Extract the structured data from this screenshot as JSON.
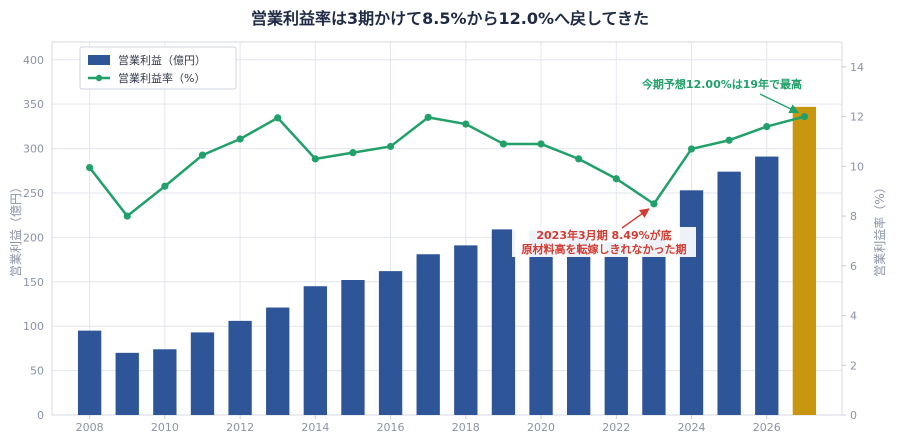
{
  "colors": {
    "bar": "#2e5597",
    "bar_highlight": "#c9960f",
    "line": "#21a06a",
    "annotation_green": "#21a06a",
    "annotation_red": "#d03b32",
    "grid": "#e3e6ee",
    "axis_text": "#8a93a8",
    "title": "#1f2a44"
  },
  "chart_data": {
    "type": "bar+line",
    "title": "営業利益率は3期かけて8.5%から12.0%へ戻してきた",
    "xlabel": "",
    "ylabel_left": "営業利益（億円）",
    "ylabel_right": "営業利益率（%）",
    "ylim_left": [
      0,
      420
    ],
    "ylim_right": [
      0,
      15
    ],
    "xlim": [
      2007,
      2028
    ],
    "grid": true,
    "legend_position": "top-left",
    "x": [
      2008,
      2009,
      2010,
      2011,
      2012,
      2013,
      2014,
      2015,
      2016,
      2017,
      2018,
      2019,
      2020,
      2021,
      2022,
      2023,
      2024,
      2025,
      2026,
      2027
    ],
    "x_tick_labels": [
      "2008",
      "2010",
      "2012",
      "2014",
      "2016",
      "2018",
      "2020",
      "2022",
      "2024",
      "2026"
    ],
    "y_left_tick_labels": [
      "0",
      "50",
      "100",
      "150",
      "200",
      "250",
      "300",
      "350",
      "400"
    ],
    "y_right_tick_labels": [
      "0",
      "2",
      "4",
      "6",
      "8",
      "10",
      "12",
      "14"
    ],
    "series": [
      {
        "name": "営業利益（億円）",
        "type": "bar",
        "axis": "left",
        "values": [
          95,
          70,
          74,
          93,
          106,
          121,
          145,
          152,
          162,
          181,
          191,
          209,
          208,
          201,
          194,
          198,
          253,
          274,
          291,
          347
        ],
        "highlight_index": 19
      },
      {
        "name": "営業利益率（%）",
        "type": "line",
        "axis": "right",
        "values": [
          9.95,
          8.0,
          9.2,
          10.45,
          11.1,
          11.95,
          10.3,
          10.55,
          10.8,
          11.97,
          11.7,
          10.9,
          10.9,
          10.3,
          9.5,
          8.49,
          10.7,
          11.05,
          11.6,
          12.0
        ]
      }
    ],
    "annotations": [
      {
        "text_lines": [
          "今期予想12.00%は19年で最高"
        ],
        "target_x": 2027,
        "target_y_right": 12.0,
        "color": "green"
      },
      {
        "text_lines": [
          "2023年3月期 8.49%が底",
          "原材料高を転嫁しきれなかった期"
        ],
        "target_x": 2023,
        "target_y_right": 8.49,
        "color": "red"
      }
    ]
  }
}
